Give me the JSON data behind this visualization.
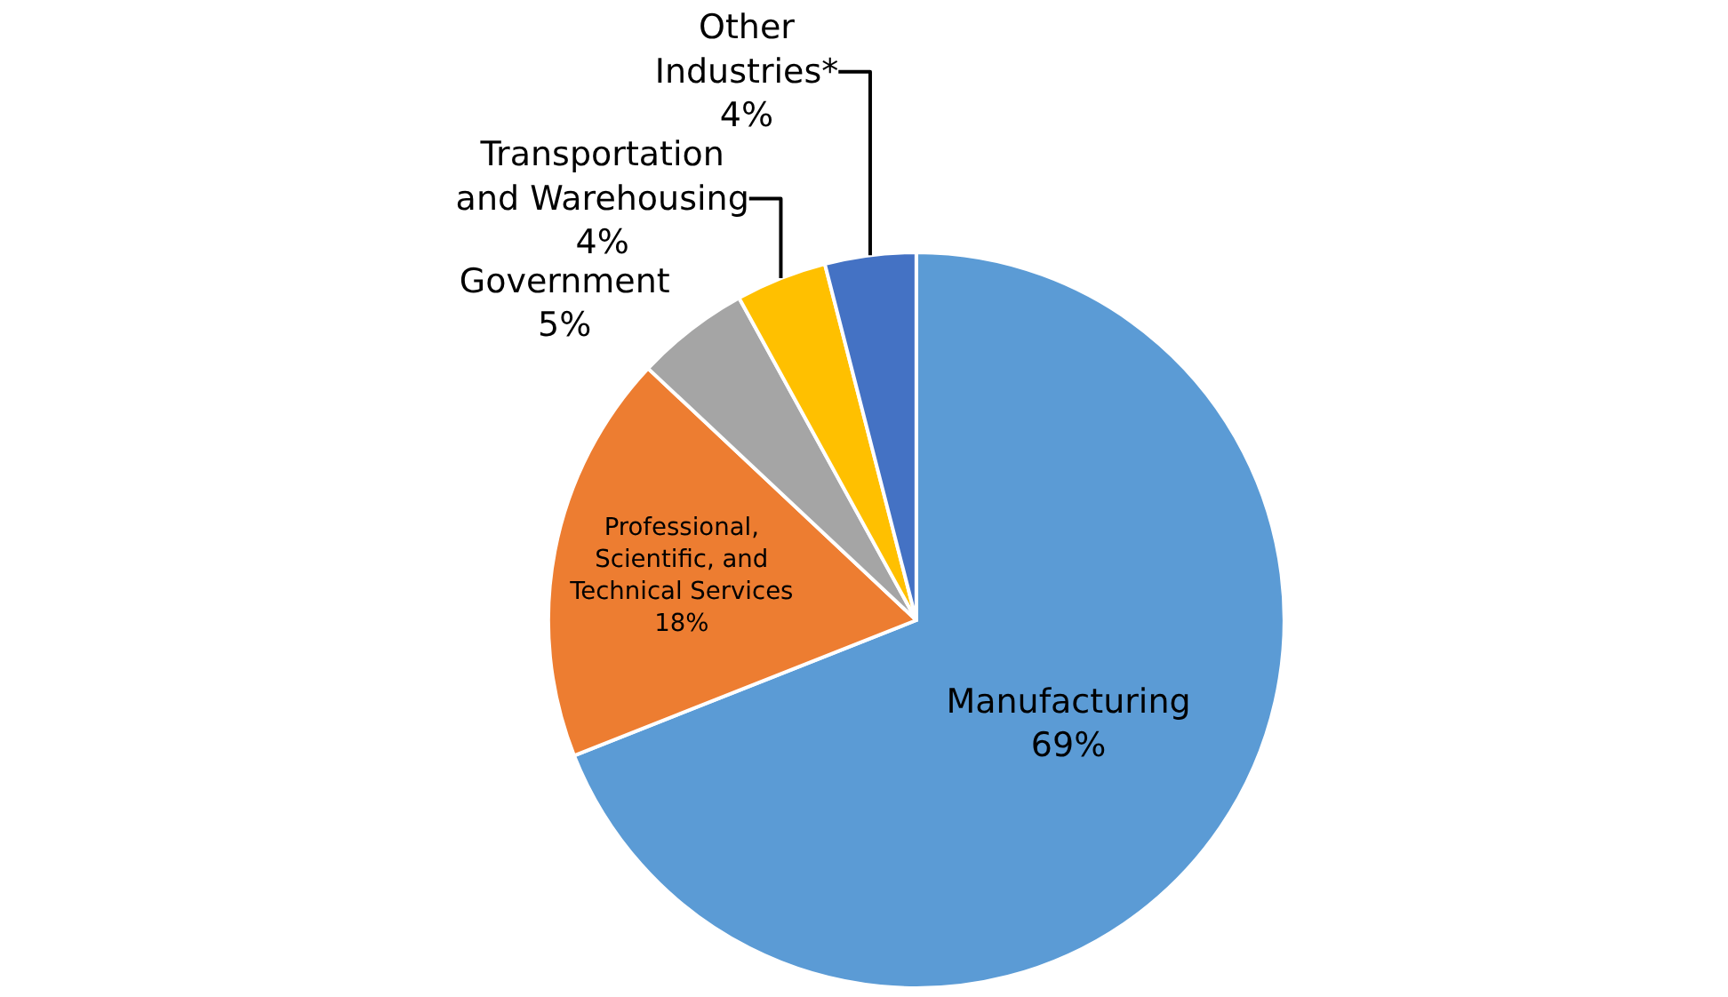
{
  "chart_data": {
    "type": "pie",
    "categories": [
      "Manufacturing",
      "Professional, Scientific, and Technical Services",
      "Government",
      "Transportation and Warehousing",
      "Other Industries*"
    ],
    "values": [
      69,
      18,
      5,
      4,
      4
    ],
    "value_labels": [
      "69%",
      "18%",
      "5%",
      "4%",
      "4%"
    ],
    "colors": [
      "#5b9bd5",
      "#ed7d31",
      "#a5a5a5",
      "#ffc000",
      "#4472c4"
    ],
    "legend": false
  }
}
